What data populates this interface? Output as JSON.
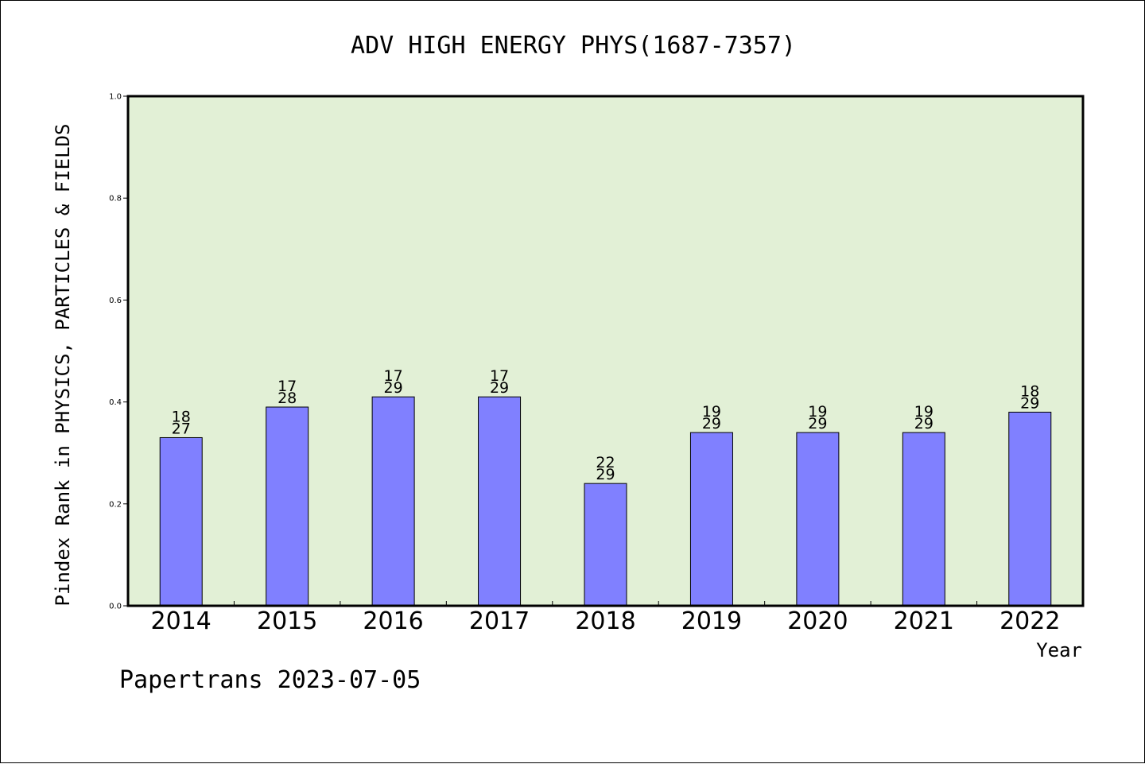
{
  "chart_data": {
    "type": "bar",
    "title": "ADV HIGH ENERGY PHYS(1687-7357)",
    "xlabel": "Year",
    "ylabel": "Pindex Rank in PHYSICS, PARTICLES & FIELDS",
    "categories": [
      "2014",
      "2015",
      "2016",
      "2017",
      "2018",
      "2019",
      "2020",
      "2021",
      "2022"
    ],
    "values": [
      0.33,
      0.39,
      0.41,
      0.41,
      0.24,
      0.34,
      0.34,
      0.34,
      0.38
    ],
    "rank": [
      "18",
      "17",
      "17",
      "17",
      "22",
      "19",
      "19",
      "19",
      "18"
    ],
    "total": [
      "27",
      "28",
      "29",
      "29",
      "29",
      "29",
      "29",
      "29",
      "29"
    ],
    "ylim": [
      0,
      1.0
    ],
    "yticks": [
      "0.0",
      "0.2",
      "0.4",
      "0.6",
      "0.8",
      "1.0"
    ],
    "grid": false,
    "colors": {
      "bar": "#8080ff",
      "plot_background": "#e2f0d6",
      "axis": "#000000"
    }
  },
  "footer": {
    "text": "Papertrans 2023-07-05"
  }
}
